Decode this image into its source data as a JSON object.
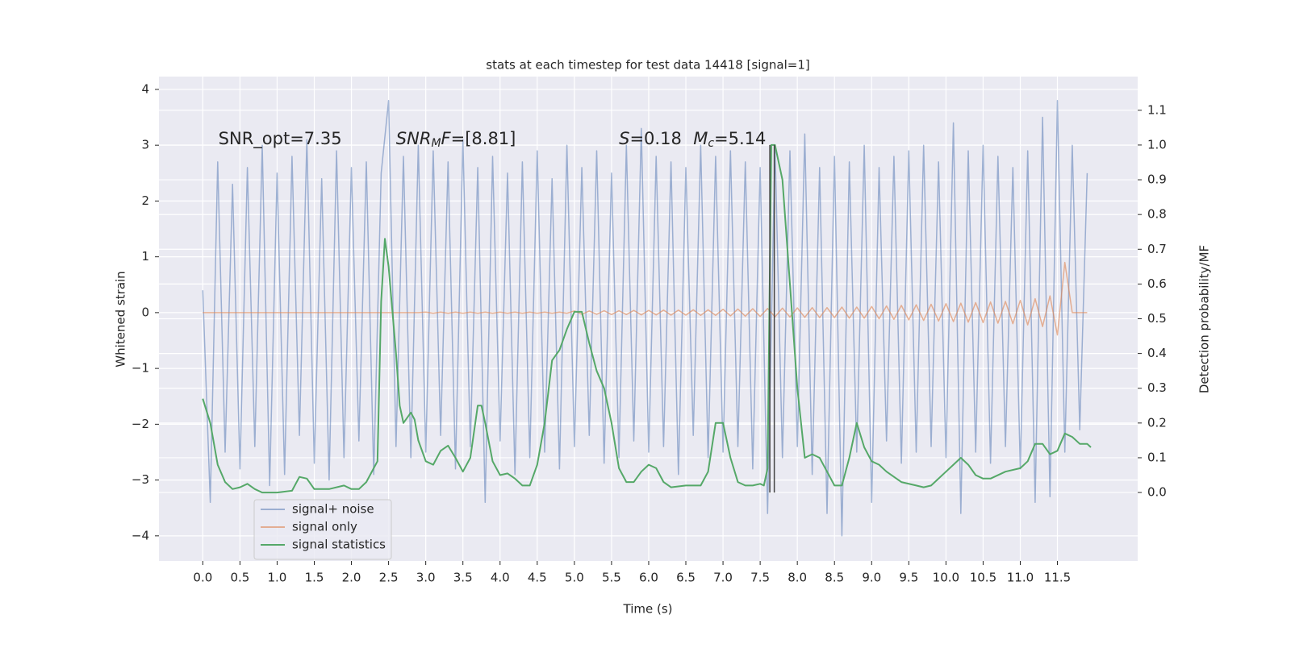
{
  "chart_data": {
    "type": "line",
    "title": "stats at each timestep for test data 14418 [signal=1]",
    "xlabel": "Time (s)",
    "ylabel": "Whitened strain",
    "y2label": "Detection probability/MF",
    "xlim": [
      -0.59,
      12.58
    ],
    "ylim": [
      -4.45,
      4.23
    ],
    "y2lim": [
      -0.197,
      1.197
    ],
    "xticks": [
      {
        "value": 0,
        "label": "0.0"
      },
      0.5,
      {
        "value": 1,
        "label": "1.0"
      },
      1.5,
      {
        "value": 2,
        "label": "2.0"
      },
      2.5,
      {
        "value": 3,
        "label": "3.0"
      },
      3.5,
      {
        "value": 4,
        "label": "4.0"
      },
      4.5,
      {
        "value": 5,
        "label": "5.0"
      },
      5.5,
      {
        "value": 6,
        "label": "6.0"
      },
      6.5,
      {
        "value": 7,
        "label": "7.0"
      },
      7.5,
      {
        "value": 8,
        "label": "8.0"
      },
      8.5,
      {
        "value": 9,
        "label": "9.0"
      },
      9.5,
      {
        "value": 10,
        "label": "10.0"
      },
      10.5,
      {
        "value": 11,
        "label": "11.0"
      },
      11.5
    ],
    "yticks": [
      {
        "value": -4,
        "label": "−4"
      },
      {
        "value": -3,
        "label": "−3"
      },
      {
        "value": -2,
        "label": "−2"
      },
      {
        "value": -1,
        "label": "−1"
      },
      0,
      1,
      2,
      3,
      4
    ],
    "y2ticks": [
      {
        "value": 0,
        "label": "0.0"
      },
      0.1,
      0.2,
      0.3,
      0.4,
      0.5,
      0.6,
      0.7,
      0.8,
      0.9,
      {
        "value": 1,
        "label": "1.0"
      },
      1.1
    ],
    "grid": true,
    "legend": "lower left",
    "x": [
      0.0,
      0.1,
      0.2,
      0.3,
      0.4,
      0.5,
      0.6,
      0.7,
      0.8,
      0.9,
      1.0,
      1.1,
      1.2,
      1.3,
      1.4,
      1.5,
      1.6,
      1.7,
      1.8,
      1.9,
      2.0,
      2.1,
      2.2,
      2.3,
      2.4,
      2.5,
      2.6,
      2.7,
      2.8,
      2.9,
      3.0,
      3.1,
      3.2,
      3.3,
      3.4,
      3.5,
      3.6,
      3.7,
      3.8,
      3.9,
      4.0,
      4.1,
      4.2,
      4.3,
      4.4,
      4.5,
      4.6,
      4.7,
      4.8,
      4.9,
      5.0,
      5.1,
      5.2,
      5.3,
      5.4,
      5.5,
      5.6,
      5.7,
      5.8,
      5.9,
      6.0,
      6.1,
      6.2,
      6.3,
      6.4,
      6.5,
      6.6,
      6.7,
      6.8,
      6.9,
      7.0,
      7.1,
      7.2,
      7.3,
      7.4,
      7.5,
      7.6,
      7.7,
      7.8,
      7.9,
      8.0,
      8.1,
      8.2,
      8.3,
      8.4,
      8.5,
      8.6,
      8.7,
      8.8,
      8.9,
      9.0,
      9.1,
      9.2,
      9.3,
      9.4,
      9.5,
      9.6,
      9.7,
      9.8,
      9.9,
      10.0,
      10.1,
      10.2,
      10.3,
      10.4,
      10.5,
      10.6,
      10.7,
      10.8,
      10.9,
      11.0,
      11.1,
      11.2,
      11.3,
      11.4,
      11.5,
      11.6,
      11.7,
      11.8,
      11.9
    ],
    "series": [
      {
        "name": "signal+ noise",
        "color": "#4c72b0",
        "opacity": 0.5,
        "values": [
          0.4,
          -3.4,
          2.7,
          -2.5,
          2.3,
          -2.8,
          2.6,
          -2.4,
          3.0,
          -3.1,
          2.5,
          -2.9,
          2.8,
          -2.2,
          3.1,
          -2.7,
          2.4,
          -3.0,
          2.9,
          -2.6,
          2.6,
          -2.3,
          2.7,
          -2.9,
          2.5,
          3.8,
          -2.4,
          2.8,
          -2.6,
          3.0,
          -2.5,
          2.9,
          -2.2,
          2.7,
          -2.8,
          3.1,
          -2.4,
          2.6,
          -3.4,
          2.8,
          -2.3,
          2.5,
          -2.9,
          2.7,
          -2.6,
          2.9,
          -2.5,
          2.4,
          -2.8,
          3.0,
          -2.4,
          2.6,
          -2.2,
          2.9,
          -2.7,
          2.5,
          -2.6,
          3.0,
          -2.3,
          3.3,
          -2.5,
          2.8,
          -2.4,
          2.7,
          -2.9,
          2.6,
          -2.2,
          3.0,
          -2.6,
          2.8,
          -2.5,
          2.9,
          -2.4,
          2.7,
          -2.8,
          2.6,
          -3.6,
          3.0,
          -2.6,
          2.9,
          -2.4,
          3.2,
          -2.9,
          2.6,
          -3.6,
          2.8,
          -4.0,
          2.7,
          -2.5,
          3.0,
          -3.4,
          2.6,
          -2.3,
          2.8,
          -2.7,
          2.9,
          -2.5,
          3.0,
          -2.4,
          2.7,
          -2.6,
          3.4,
          -3.6,
          2.9,
          -2.5,
          3.0,
          -2.7,
          2.8,
          -2.4,
          2.6,
          -2.8,
          2.9,
          -3.4,
          3.5,
          -3.3,
          3.8,
          -2.5,
          3.0,
          -2.1,
          2.5
        ]
      },
      {
        "name": "signal only",
        "color": "#dd8452",
        "opacity": 0.6,
        "values": [
          0,
          0,
          0,
          0,
          0,
          0,
          0,
          0,
          0,
          0,
          0,
          0,
          0,
          0,
          0,
          0,
          0,
          0,
          0,
          0,
          0,
          0,
          0,
          0,
          0,
          0,
          0,
          0,
          0,
          0,
          0.01,
          -0.01,
          0.01,
          -0.01,
          0.01,
          -0.01,
          0.01,
          -0.01,
          0.01,
          -0.01,
          0.01,
          -0.01,
          0.01,
          -0.01,
          0.01,
          -0.01,
          0.01,
          -0.01,
          0.01,
          -0.01,
          0.03,
          -0.03,
          0.03,
          -0.03,
          0.035,
          -0.035,
          0.035,
          -0.035,
          0.04,
          -0.04,
          0.04,
          -0.04,
          0.045,
          -0.045,
          0.045,
          -0.045,
          0.05,
          -0.05,
          0.05,
          -0.05,
          0.06,
          -0.06,
          0.065,
          -0.065,
          0.07,
          -0.07,
          0.075,
          -0.075,
          0.08,
          -0.08,
          0.085,
          -0.085,
          0.09,
          -0.09,
          0.09,
          -0.09,
          0.1,
          -0.1,
          0.1,
          -0.1,
          0.11,
          -0.11,
          0.12,
          -0.12,
          0.13,
          -0.13,
          0.14,
          -0.14,
          0.15,
          -0.15,
          0.16,
          -0.16,
          0.17,
          -0.17,
          0.18,
          -0.18,
          0.19,
          -0.19,
          0.2,
          -0.2,
          0.22,
          -0.22,
          0.25,
          -0.25,
          0.3,
          -0.4,
          0.9,
          0,
          0,
          0
        ]
      },
      {
        "name": "signal statistics",
        "color": "#55a868",
        "axis": "y2",
        "x": [
          0.0,
          0.1,
          0.2,
          0.3,
          0.4,
          0.5,
          0.6,
          0.7,
          0.8,
          1.0,
          1.2,
          1.3,
          1.4,
          1.5,
          1.7,
          1.9,
          2.0,
          2.1,
          2.2,
          2.3,
          2.35,
          2.4,
          2.45,
          2.5,
          2.6,
          2.65,
          2.7,
          2.8,
          2.85,
          2.9,
          3.0,
          3.1,
          3.2,
          3.3,
          3.4,
          3.5,
          3.6,
          3.7,
          3.75,
          3.8,
          3.9,
          4.0,
          4.1,
          4.2,
          4.3,
          4.4,
          4.5,
          4.6,
          4.7,
          4.8,
          4.9,
          5.0,
          5.1,
          5.2,
          5.3,
          5.4,
          5.5,
          5.6,
          5.7,
          5.8,
          5.9,
          6.0,
          6.1,
          6.2,
          6.3,
          6.5,
          6.7,
          6.8,
          6.9,
          7.0,
          7.1,
          7.2,
          7.3,
          7.4,
          7.5,
          7.55,
          7.6,
          7.65,
          7.7,
          7.8,
          7.9,
          8.0,
          8.1,
          8.2,
          8.3,
          8.4,
          8.5,
          8.6,
          8.7,
          8.8,
          8.9,
          9.0,
          9.1,
          9.2,
          9.4,
          9.6,
          9.7,
          9.8,
          10.0,
          10.1,
          10.2,
          10.3,
          10.4,
          10.5,
          10.6,
          10.8,
          11.0,
          11.1,
          11.2,
          11.3,
          11.4,
          11.5,
          11.6,
          11.7,
          11.8,
          11.9,
          11.95
        ],
        "values": [
          0.27,
          0.2,
          0.08,
          0.03,
          0.01,
          0.015,
          0.025,
          0.01,
          0.0,
          0.0,
          0.005,
          0.045,
          0.04,
          0.01,
          0.01,
          0.02,
          0.01,
          0.01,
          0.03,
          0.07,
          0.09,
          0.55,
          0.73,
          0.65,
          0.4,
          0.25,
          0.2,
          0.23,
          0.21,
          0.15,
          0.09,
          0.08,
          0.12,
          0.135,
          0.1,
          0.06,
          0.1,
          0.25,
          0.25,
          0.2,
          0.09,
          0.05,
          0.055,
          0.04,
          0.02,
          0.02,
          0.08,
          0.2,
          0.38,
          0.41,
          0.47,
          0.52,
          0.52,
          0.43,
          0.35,
          0.3,
          0.2,
          0.07,
          0.03,
          0.03,
          0.06,
          0.08,
          0.07,
          0.03,
          0.015,
          0.02,
          0.02,
          0.06,
          0.2,
          0.2,
          0.1,
          0.03,
          0.02,
          0.02,
          0.025,
          0.02,
          0.07,
          1.0,
          1.0,
          0.9,
          0.6,
          0.3,
          0.1,
          0.11,
          0.1,
          0.06,
          0.02,
          0.02,
          0.1,
          0.2,
          0.13,
          0.09,
          0.08,
          0.06,
          0.03,
          0.02,
          0.015,
          0.02,
          0.06,
          0.08,
          0.1,
          0.08,
          0.05,
          0.04,
          0.04,
          0.06,
          0.07,
          0.09,
          0.14,
          0.14,
          0.11,
          0.12,
          0.17,
          0.16,
          0.14,
          0.14,
          0.13
        ]
      }
    ],
    "vlines": [
      {
        "x": 7.63,
        "y2": [
          0,
          1
        ],
        "color": "#444444"
      },
      {
        "x": 7.69,
        "y2": [
          0,
          1
        ],
        "color": "#444444"
      }
    ],
    "annotations": [
      {
        "x": 0.21,
        "y": 3.1,
        "parts": [
          {
            "text": "SNR_opt=7.35",
            "style": "normal"
          }
        ]
      },
      {
        "x": 2.6,
        "y": 3.1,
        "parts": [
          {
            "text": "SNR",
            "style": "italic"
          },
          {
            "text": "M",
            "style": "sub"
          },
          {
            "text": "F",
            "style": "italic"
          },
          {
            "text": "=[8.81]",
            "style": "normal"
          }
        ]
      },
      {
        "x": 5.6,
        "y": 3.1,
        "parts": [
          {
            "text": "S",
            "style": "italic"
          },
          {
            "text": "=0.18",
            "style": "normal"
          }
        ]
      },
      {
        "x": 6.6,
        "y": 3.1,
        "parts": [
          {
            "text": "M",
            "style": "italic"
          },
          {
            "text": "c",
            "style": "sub"
          },
          {
            "text": "=5.14",
            "style": "normal"
          }
        ]
      }
    ]
  }
}
